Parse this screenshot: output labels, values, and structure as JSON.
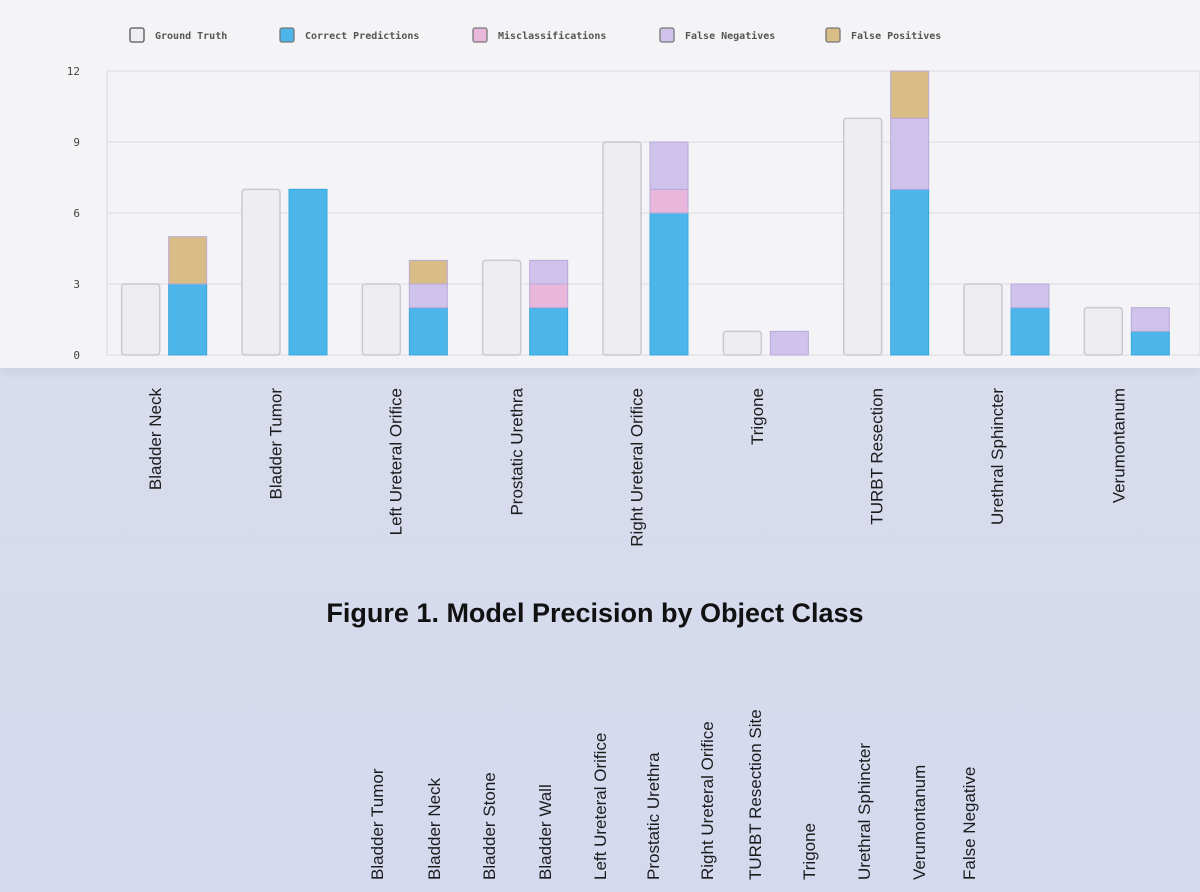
{
  "chart_data": {
    "type": "bar",
    "title": "Figure 1. Model Precision by Object Class",
    "xlabel": "",
    "ylabel": "",
    "ylim": [
      0,
      12
    ],
    "yticks": [
      "0",
      "3",
      "6",
      "9",
      "12"
    ],
    "grid": true,
    "legend_position": "top",
    "categories": [
      "Bladder Neck",
      "Bladder Tumor",
      "Left Ureteral Orifice",
      "Prostatic Urethra",
      "Right Ureteral Orifice",
      "Trigone",
      "TURBT Resection",
      "Urethral Sphincter",
      "Verumontanum"
    ],
    "legend": [
      {
        "name": "Ground Truth",
        "color": "#eeeef2"
      },
      {
        "name": "Correct Predictions",
        "color": "#4cb6ea"
      },
      {
        "name": "Misclassifications",
        "color": "#e9b6dc"
      },
      {
        "name": "False Negatives",
        "color": "#cfc3ec"
      },
      {
        "name": "False Positives",
        "color": "#d8bd86"
      }
    ],
    "series": [
      {
        "name": "Ground Truth",
        "values": [
          3,
          7,
          3,
          4,
          9,
          1,
          10,
          3,
          2
        ]
      },
      {
        "name": "Correct Predictions",
        "values": [
          3,
          7,
          2,
          2,
          6,
          0,
          7,
          2,
          1
        ]
      },
      {
        "name": "Misclassifications",
        "values": [
          0,
          0,
          0,
          1,
          1,
          0,
          0,
          0,
          0
        ]
      },
      {
        "name": "False Negatives",
        "values": [
          0,
          0,
          1,
          1,
          2,
          1,
          3,
          1,
          1
        ]
      },
      {
        "name": "False Positives",
        "values": [
          2,
          0,
          1,
          0,
          0,
          0,
          2,
          0,
          0
        ]
      }
    ]
  },
  "figure_caption": "Figure 1. Model Precision by Object Class",
  "bottom_labels": [
    "Bladder Tumor",
    "Bladder Neck",
    "Bladder Stone",
    "Bladder Wall",
    "Left Ureteral Orifice",
    "Prostatic Urethra",
    "Right Ureteral Orifice",
    "TURBT Resection Site",
    "Trigone",
    "Urethral Sphincter",
    "Verumontanum",
    "False Negative"
  ]
}
